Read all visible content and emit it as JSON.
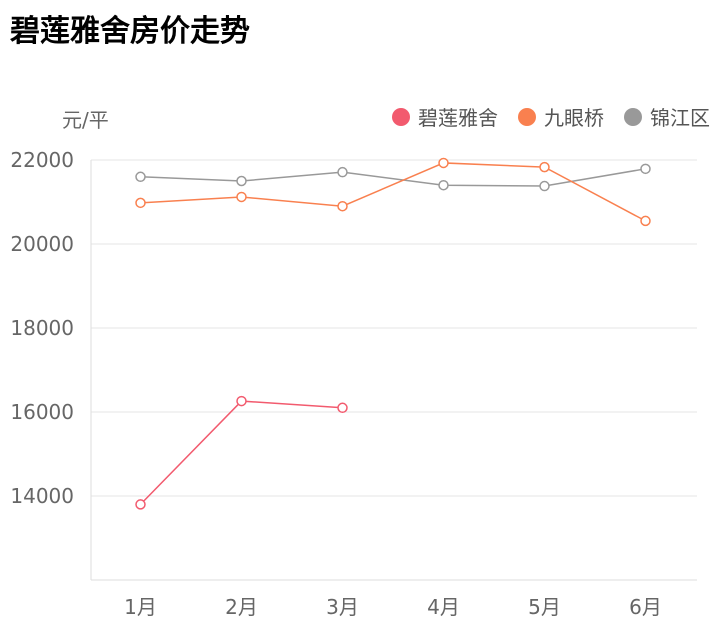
{
  "chart_data": {
    "type": "line",
    "title": "碧莲雅舍房价走势",
    "ylabel": "元/平",
    "xlabel": "",
    "categories": [
      "1月",
      "2月",
      "3月",
      "4月",
      "5月",
      "6月"
    ],
    "ylim": [
      12000,
      22000
    ],
    "yticks": [
      14000,
      16000,
      18000,
      20000,
      22000
    ],
    "grid": true,
    "legend_position": "top-right",
    "series": [
      {
        "name": "碧莲雅舍",
        "color": "#f25a6e",
        "values": [
          13800,
          16260,
          16100,
          null,
          null,
          null
        ]
      },
      {
        "name": "九眼桥",
        "color": "#f9804f",
        "values": [
          20980,
          21120,
          20900,
          21930,
          21830,
          20550
        ]
      },
      {
        "name": "锦江区",
        "color": "#999999",
        "values": [
          21600,
          21500,
          21710,
          21400,
          21380,
          21790
        ]
      }
    ]
  }
}
